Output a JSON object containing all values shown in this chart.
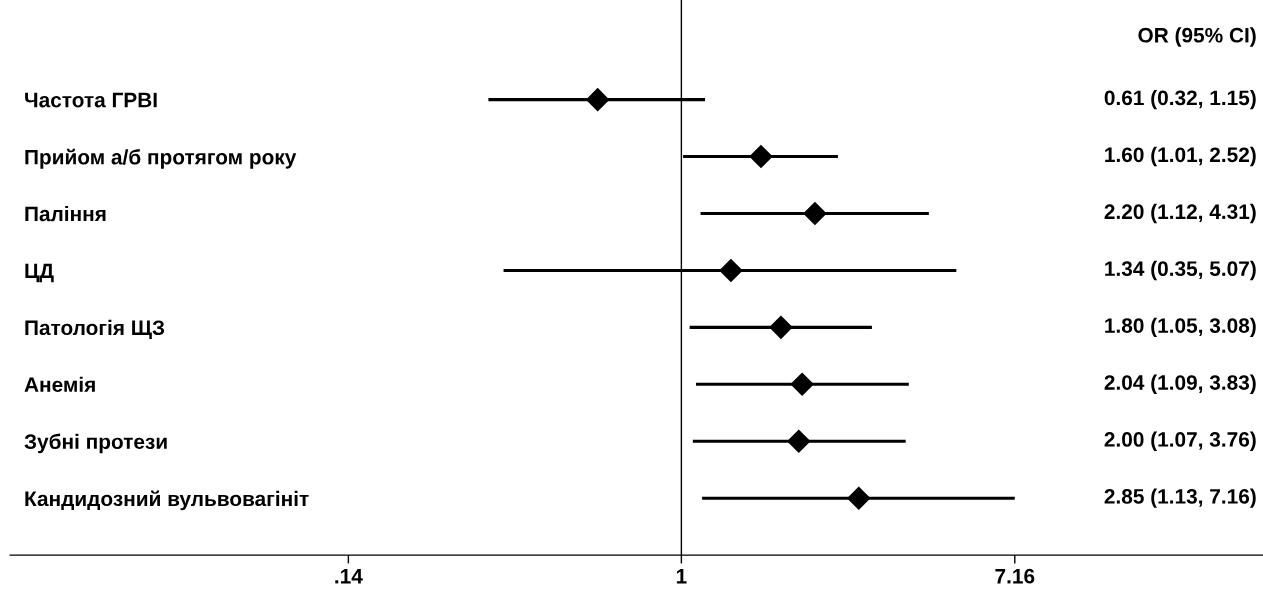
{
  "chart_data": {
    "type": "scatter",
    "categories": [
      "Частота ГРВІ",
      "Прийом а/б протягом року",
      "Паління",
      "ЦД",
      "Патологія ЩЗ",
      "Анемія",
      "Зубні протези",
      "Кандидозний вульвовагініт"
    ],
    "series": [
      {
        "color": "#000000",
        "values": [
          0.61,
          1.6,
          2.2,
          1.34,
          1.8,
          2.04,
          2.0,
          2.85
        ],
        "errors": [
          [
            0.32,
            1.15
          ],
          [
            1.01,
            2.52
          ],
          [
            1.12,
            4.31
          ],
          [
            0.35,
            5.07
          ],
          [
            1.05,
            3.08
          ],
          [
            1.09,
            3.83
          ],
          [
            1.07,
            3.76
          ],
          [
            1.13,
            7.16
          ]
        ]
      }
    ],
    "orientation": "horizontal",
    "log": "x",
    "xlim": [
      0.019,
      31
    ],
    "xticks": [
      {
        "value": 0.14,
        "label": ".14"
      },
      1,
      7.16
    ],
    "ref_lines": [
      {
        "axis": "x",
        "value": 1,
        "color": "#000000"
      }
    ],
    "annotations": [
      "OR (95% CI)",
      "0.61 (0.32, 1.15)",
      "1.60 (1.01, 2.52)",
      "2.20 (1.12, 4.31)",
      "1.34 (0.35, 5.07)",
      "1.80 (1.05, 3.08)",
      "2.04 (1.09, 3.83)",
      "2.00 (1.07, 3.76)",
      "2.85 (1.13, 7.16)"
    ],
    "marker": "diamond",
    "grid": false,
    "legend": false
  }
}
